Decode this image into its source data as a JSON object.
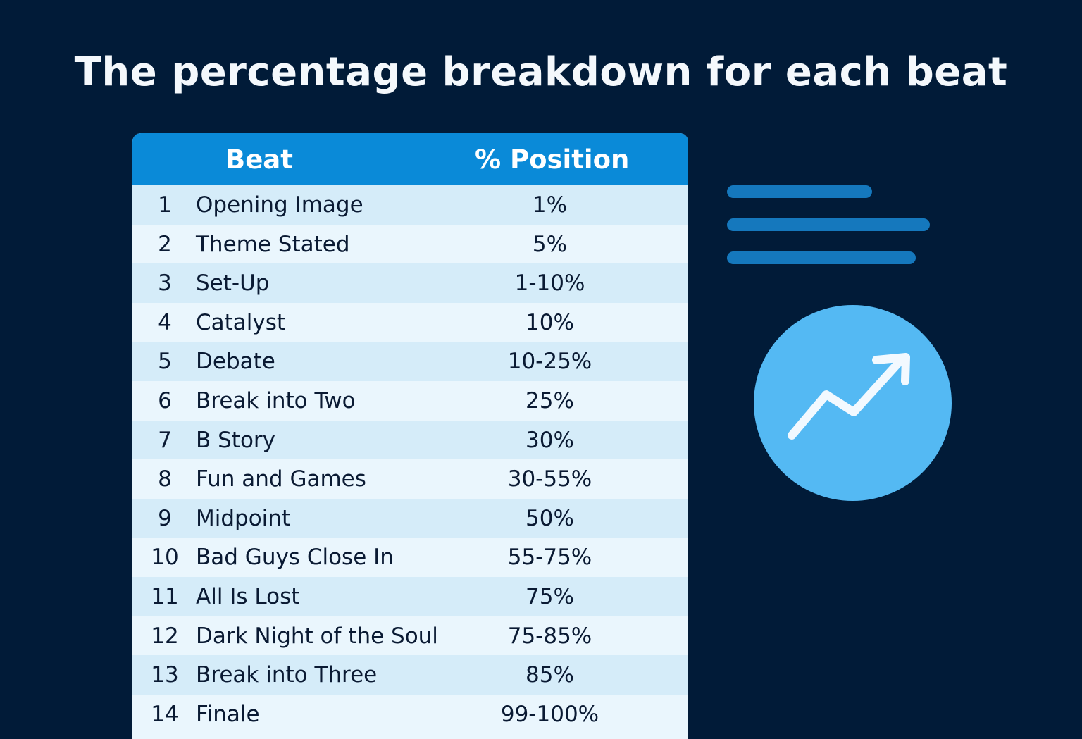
{
  "title": "The percentage breakdown for each beat",
  "table": {
    "headers": {
      "beat": "Beat",
      "position": "% Position"
    },
    "rows": [
      {
        "num": "1",
        "beat": "Opening Image",
        "position": "1%"
      },
      {
        "num": "2",
        "beat": "Theme Stated",
        "position": "5%"
      },
      {
        "num": "3",
        "beat": "Set-Up",
        "position": "1-10%"
      },
      {
        "num": "4",
        "beat": "Catalyst",
        "position": "10%"
      },
      {
        "num": "5",
        "beat": "Debate",
        "position": "10-25%"
      },
      {
        "num": "6",
        "beat": "Break into Two",
        "position": "25%"
      },
      {
        "num": "7",
        "beat": "B Story",
        "position": "30%"
      },
      {
        "num": "8",
        "beat": "Fun and Games",
        "position": "30-55%"
      },
      {
        "num": "9",
        "beat": "Midpoint",
        "position": "50%"
      },
      {
        "num": "10",
        "beat": "Bad Guys Close In",
        "position": "55-75%"
      },
      {
        "num": "11",
        "beat": "All Is Lost",
        "position": "75%"
      },
      {
        "num": "12",
        "beat": "Dark Night of the Soul",
        "position": "75-85%"
      },
      {
        "num": "13",
        "beat": "Break into Three",
        "position": "85%"
      },
      {
        "num": "14",
        "beat": "Finale",
        "position": "99-100%"
      }
    ]
  },
  "decorations": {
    "icon": "trending-up-icon",
    "lines": "text-lines-icon"
  },
  "colors": {
    "background": "#011b38",
    "header": "#0a8ad8",
    "accent": "#54b9f3",
    "row_dark": "#d5ecf9",
    "row_light": "#eaf6fd"
  }
}
